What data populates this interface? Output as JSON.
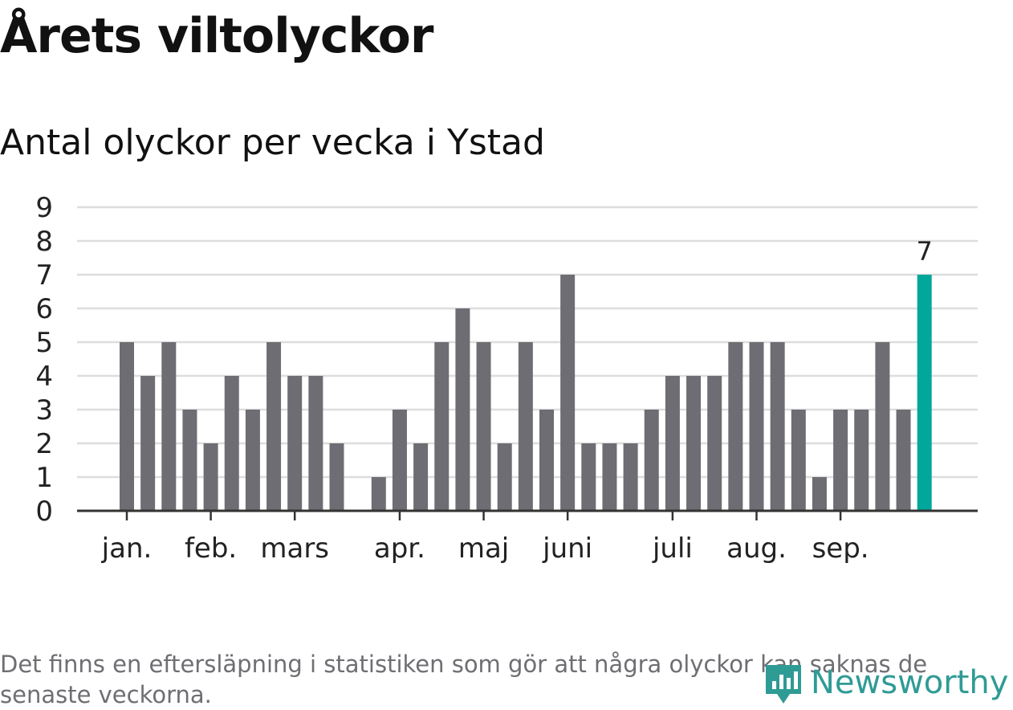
{
  "header": {
    "title": "Årets viltolyckor",
    "subtitle": "Antal olyckor per vecka i Ystad"
  },
  "footnote": "Det finns en eftersläpning i statistiken som gör att några olyckor kan saknas de senaste veckorna.",
  "logo": {
    "text": "Newsworthy",
    "icon": "newsworthy-logo-icon",
    "color": "#2f9b95"
  },
  "chart_data": {
    "type": "bar",
    "title": "Årets viltolyckor",
    "subtitle": "Antal olyckor per vecka i Ystad",
    "xlabel": "",
    "ylabel": "",
    "ylim": [
      0,
      9
    ],
    "yticks": [
      "0",
      "1",
      "2",
      "3",
      "4",
      "5",
      "6",
      "7",
      "8",
      "9"
    ],
    "grid": true,
    "month_ticks": [
      {
        "label": "jan.",
        "week": 1
      },
      {
        "label": "feb.",
        "week": 5
      },
      {
        "label": "mars",
        "week": 9
      },
      {
        "label": "apr.",
        "week": 14
      },
      {
        "label": "maj",
        "week": 18
      },
      {
        "label": "juni",
        "week": 22
      },
      {
        "label": "juli",
        "week": 27
      },
      {
        "label": "aug.",
        "week": 31
      },
      {
        "label": "sep.",
        "week": 35
      }
    ],
    "weeks": [
      1,
      2,
      3,
      4,
      5,
      6,
      7,
      8,
      9,
      10,
      11,
      12,
      13,
      14,
      15,
      16,
      17,
      18,
      19,
      20,
      21,
      22,
      23,
      24,
      25,
      26,
      27,
      28,
      29,
      30,
      31,
      32,
      33,
      34,
      35,
      36,
      37,
      38,
      39
    ],
    "values": [
      5,
      4,
      5,
      3,
      2,
      4,
      3,
      5,
      4,
      4,
      2,
      0,
      1,
      3,
      2,
      5,
      6,
      5,
      2,
      5,
      3,
      7,
      2,
      2,
      2,
      3,
      4,
      4,
      4,
      5,
      5,
      5,
      3,
      1,
      3,
      3,
      5,
      3,
      7
    ],
    "highlight": {
      "week": 39,
      "value": 7,
      "label": "7"
    },
    "colors": {
      "bar": "#6e6d73",
      "highlight": "#00a79a",
      "grid": "#dddddd",
      "axis": "#333333"
    }
  }
}
